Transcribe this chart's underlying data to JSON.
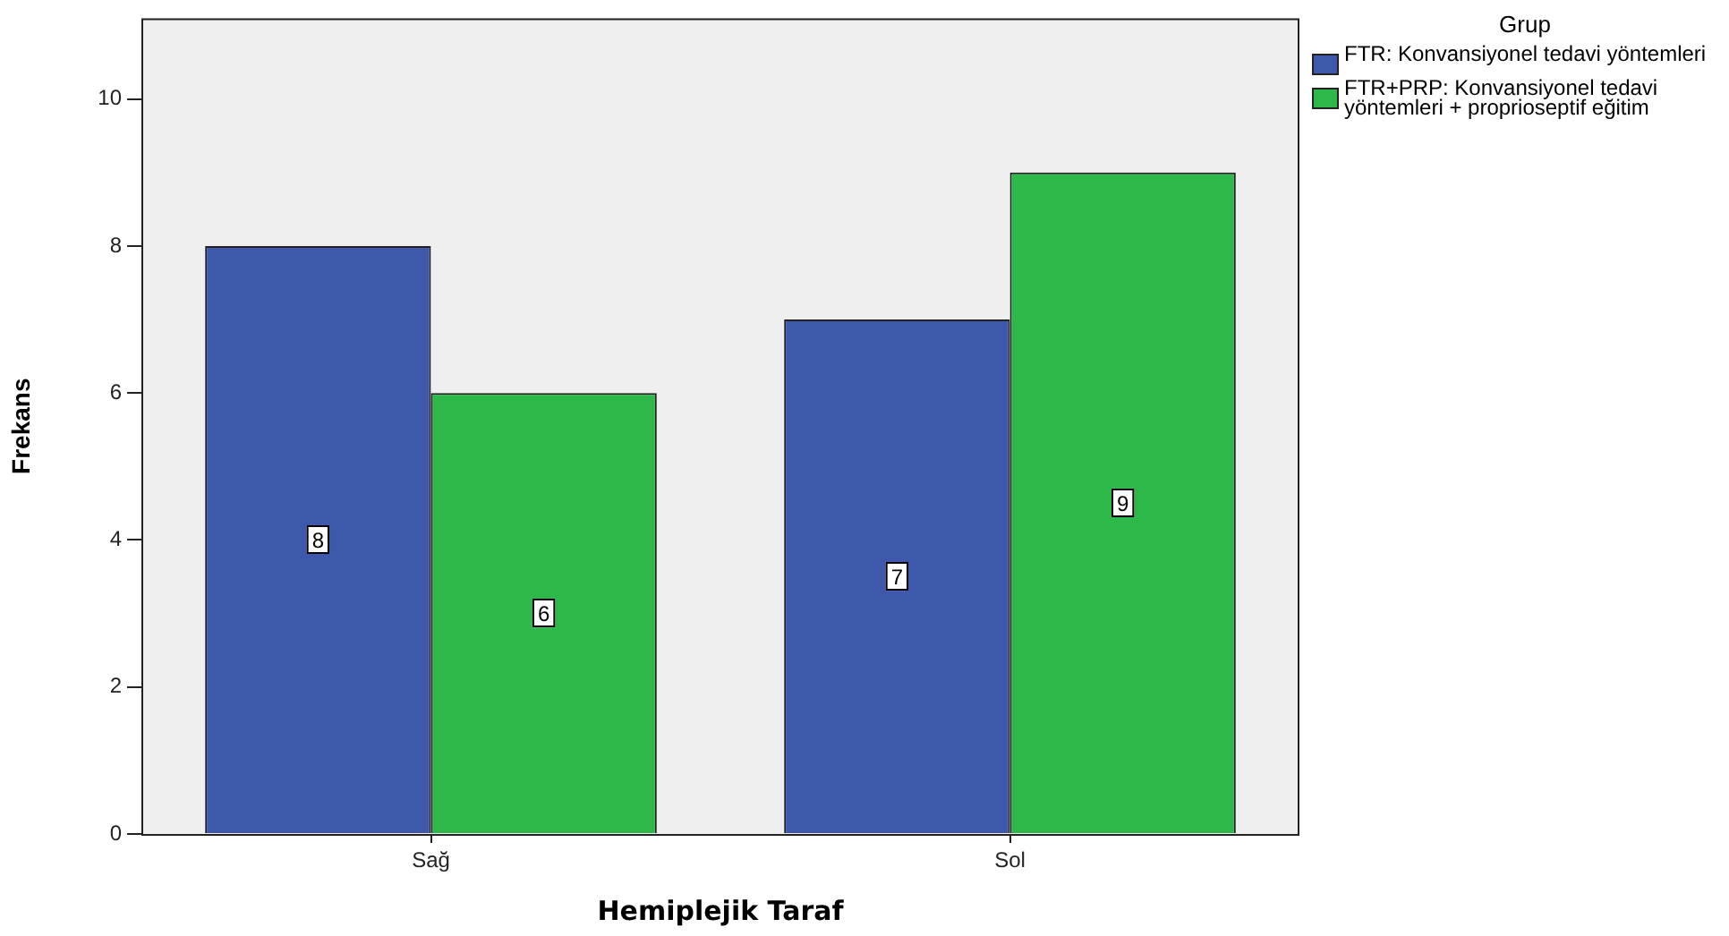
{
  "chart_data": {
    "type": "bar",
    "xlabel": "Hemiplejik Taraf",
    "ylabel": "Frekans",
    "legend_title": "Grup",
    "categories": [
      "Sağ",
      "Sol"
    ],
    "series": [
      {
        "name": "FTR: Konvansiyonel tedavi yöntemleri",
        "color": "#3e58ac",
        "values": [
          8,
          7
        ]
      },
      {
        "name": "FTR+PRP: Konvansiyonel tedavi yöntemleri + proprioseptif eğitim",
        "color": "#2eb84a",
        "values": [
          6,
          9
        ]
      }
    ],
    "ylim": [
      0,
      11.1
    ],
    "yticks": [
      0,
      2,
      4,
      6,
      8,
      10
    ],
    "grid": false,
    "legend": "top right",
    "data_labels": true
  }
}
